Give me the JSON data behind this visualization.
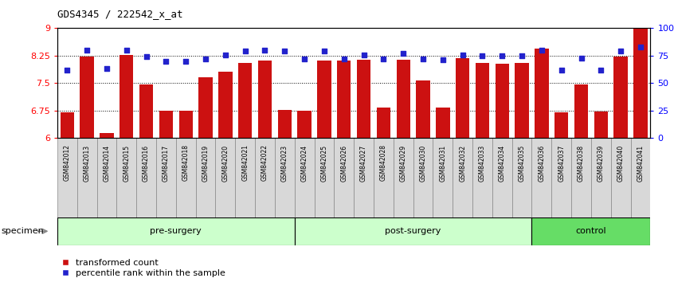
{
  "title": "GDS4345 / 222542_x_at",
  "samples": [
    "GSM842012",
    "GSM842013",
    "GSM842014",
    "GSM842015",
    "GSM842016",
    "GSM842017",
    "GSM842018",
    "GSM842019",
    "GSM842020",
    "GSM842021",
    "GSM842022",
    "GSM842023",
    "GSM842024",
    "GSM842025",
    "GSM842026",
    "GSM842027",
    "GSM842028",
    "GSM842029",
    "GSM842030",
    "GSM842031",
    "GSM842032",
    "GSM842033",
    "GSM842034",
    "GSM842035",
    "GSM842036",
    "GSM842037",
    "GSM842038",
    "GSM842039",
    "GSM842040",
    "GSM842041"
  ],
  "bar_values": [
    6.7,
    8.22,
    6.15,
    8.27,
    7.47,
    6.75,
    6.75,
    7.67,
    7.82,
    8.05,
    8.12,
    6.78,
    6.75,
    8.12,
    8.12,
    8.15,
    6.84,
    8.13,
    7.58,
    6.84,
    8.18,
    8.05,
    8.04,
    8.05,
    8.45,
    6.7,
    7.47,
    6.72,
    8.22,
    9.0
  ],
  "percentile_values": [
    62,
    80,
    63,
    80,
    74,
    70,
    70,
    72,
    76,
    79,
    80,
    79,
    72,
    79,
    72,
    76,
    72,
    77,
    72,
    71,
    76,
    75,
    75,
    75,
    80,
    62,
    73,
    62,
    79,
    83
  ],
  "bar_color": "#cc1111",
  "percentile_color": "#2222cc",
  "ylim_left": [
    6.0,
    9.0
  ],
  "ylim_right": [
    0,
    100
  ],
  "yticks_left": [
    6.0,
    6.75,
    7.5,
    8.25,
    9.0
  ],
  "ytick_labels_left": [
    "6",
    "6.75",
    "7.5",
    "8.25",
    "9"
  ],
  "yticks_right": [
    0,
    25,
    50,
    75,
    100
  ],
  "ytick_labels_right": [
    "0",
    "25",
    "50",
    "75",
    "100%"
  ],
  "hlines": [
    6.75,
    7.5,
    8.25
  ],
  "groups": [
    {
      "label": "pre-surgery",
      "start": 0,
      "end": 12
    },
    {
      "label": "post-surgery",
      "start": 12,
      "end": 24
    },
    {
      "label": "control",
      "start": 24,
      "end": 30
    }
  ],
  "group_colors": [
    "#ccffcc",
    "#ccffcc",
    "#66dd66"
  ],
  "legend_bar_label": "transformed count",
  "legend_pct_label": "percentile rank within the sample",
  "specimen_label": "specimen",
  "tick_box_color": "#d8d8d8",
  "tick_box_edge": "#888888"
}
